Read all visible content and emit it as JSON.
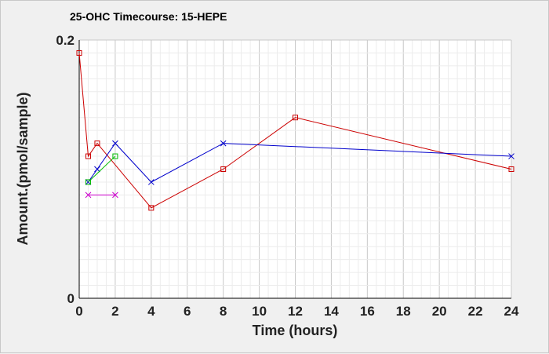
{
  "chart_data": {
    "type": "line",
    "title": "25-OHC Timecourse: 15-HEPE",
    "xlabel": "Time (hours)",
    "ylabel": "Amount.(pmol/sample)",
    "xlim": [
      0,
      24
    ],
    "ylim": [
      0,
      0.2
    ],
    "x_ticks": [
      0,
      2,
      4,
      6,
      8,
      10,
      12,
      14,
      16,
      18,
      20,
      22,
      24
    ],
    "y_ticks": [
      "0",
      "0.2"
    ],
    "grid": true,
    "legend": "none",
    "series": [
      {
        "color": "#cc0000",
        "marker": "square",
        "points": [
          [
            0,
            0.19
          ],
          [
            0.5,
            0.11
          ],
          [
            1,
            0.12
          ],
          [
            4,
            0.07
          ],
          [
            8,
            0.1
          ],
          [
            12,
            0.14
          ],
          [
            24,
            0.1
          ]
        ]
      },
      {
        "color": "#0000cc",
        "marker": "x",
        "points": [
          [
            0.5,
            0.09
          ],
          [
            1,
            0.1
          ],
          [
            2,
            0.12
          ],
          [
            4,
            0.09
          ],
          [
            8,
            0.12
          ],
          [
            24,
            0.11
          ]
        ]
      },
      {
        "color": "#00bb00",
        "marker": "square",
        "points": [
          [
            0.5,
            0.09
          ],
          [
            2,
            0.11
          ]
        ]
      },
      {
        "color": "#cc00cc",
        "marker": "x",
        "points": [
          [
            0.5,
            0.08
          ],
          [
            2,
            0.08
          ]
        ]
      }
    ]
  }
}
